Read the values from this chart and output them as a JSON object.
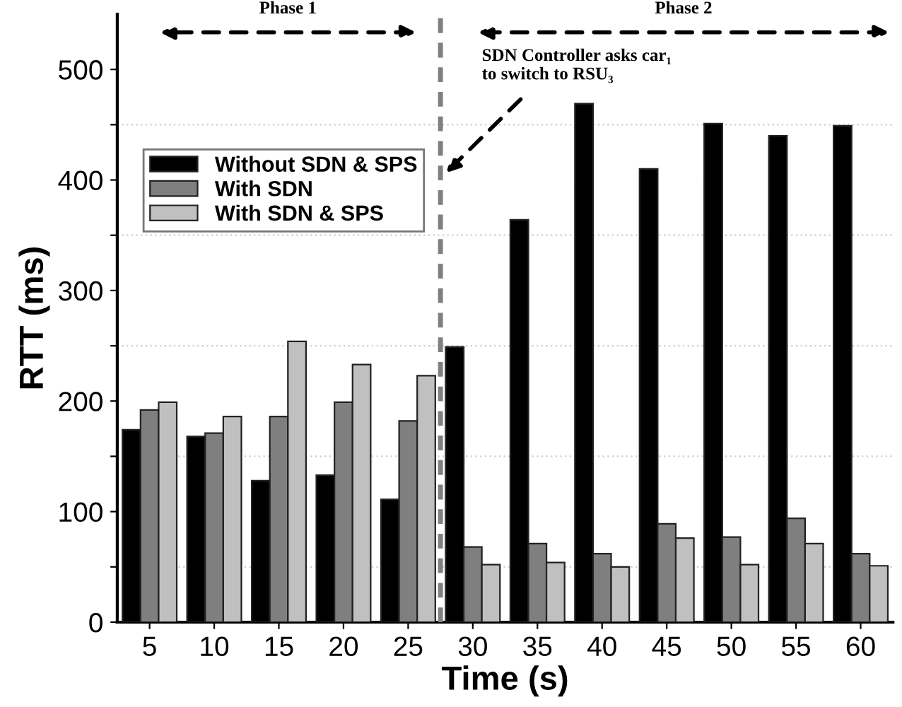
{
  "chart_data": {
    "type": "bar",
    "xlabel": "Time (s)",
    "ylabel": "RTT (ms)",
    "x": [
      5,
      10,
      15,
      20,
      25,
      30,
      35,
      40,
      45,
      50,
      55,
      60
    ],
    "series": [
      {
        "name": "Without SDN & SPS",
        "color": "#000000",
        "values": [
          174,
          168,
          128,
          133,
          111,
          249,
          364,
          469,
          410,
          451,
          440,
          449
        ]
      },
      {
        "name": "With SDN",
        "color": "#7f7f7f",
        "values": [
          192,
          171,
          186,
          199,
          182,
          68,
          71,
          62,
          89,
          77,
          94,
          62
        ]
      },
      {
        "name": "With SDN & SPS",
        "color": "#c0c0c0",
        "values": [
          199,
          186,
          254,
          233,
          223,
          52,
          54,
          50,
          76,
          52,
          71,
          51
        ]
      }
    ],
    "xlim": [
      2.5,
      62.5
    ],
    "xticks": [
      5,
      10,
      15,
      20,
      25,
      30,
      35,
      40,
      45,
      50,
      55,
      60
    ],
    "ylim": [
      0,
      550
    ],
    "yticks": [
      0,
      {
        "value": 50,
        "label": null
      },
      100,
      {
        "value": 150,
        "label": null
      },
      200,
      {
        "value": 250,
        "label": null
      },
      300,
      {
        "value": 350,
        "label": null
      },
      400,
      {
        "value": 450,
        "label": null
      },
      500
    ],
    "grid": "y",
    "legend": "left",
    "ref_lines": [
      {
        "axis": "x",
        "value": 27.5,
        "color": "#808080",
        "line_style": "dashed"
      }
    ],
    "annotations": [
      "Phase 1",
      "Phase 2",
      "SDN Controller asks car₁\nto switch to RSU₃"
    ]
  }
}
